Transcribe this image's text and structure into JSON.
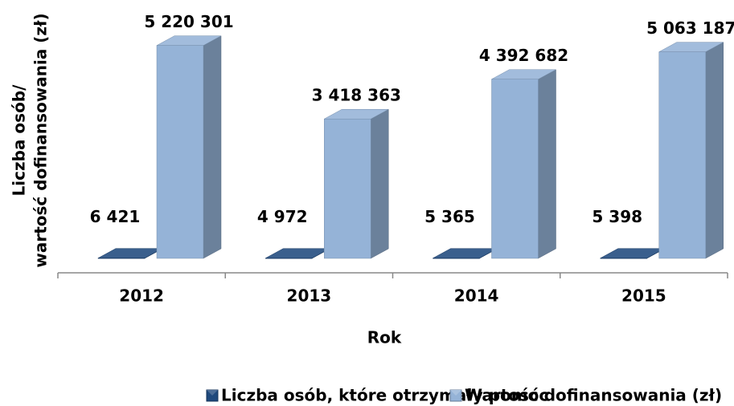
{
  "chart_data": {
    "type": "bar3d",
    "ylabel": [
      "Liczba osób/",
      "wartość dofinansowania (zł)"
    ],
    "xlabel": "Rok",
    "categories": [
      "2012",
      "2013",
      "2014",
      "2015"
    ],
    "ylim": [
      0,
      6000000
    ],
    "series": [
      {
        "name": "Liczba osób, które otrzymały pomoc",
        "color": "#1f497d",
        "values": [
          6421,
          4972,
          5365,
          5398
        ],
        "value_labels": [
          "6 421",
          "4 972",
          "5 365",
          "5 398"
        ]
      },
      {
        "name": "Wartość dofinansowania (zł)",
        "color": "#95b3d7",
        "values": [
          5220301,
          3418363,
          4392682,
          5063187
        ],
        "value_labels": [
          "5 220 301",
          "3 418 363",
          "4 392 682",
          "5 063 187"
        ]
      }
    ]
  }
}
